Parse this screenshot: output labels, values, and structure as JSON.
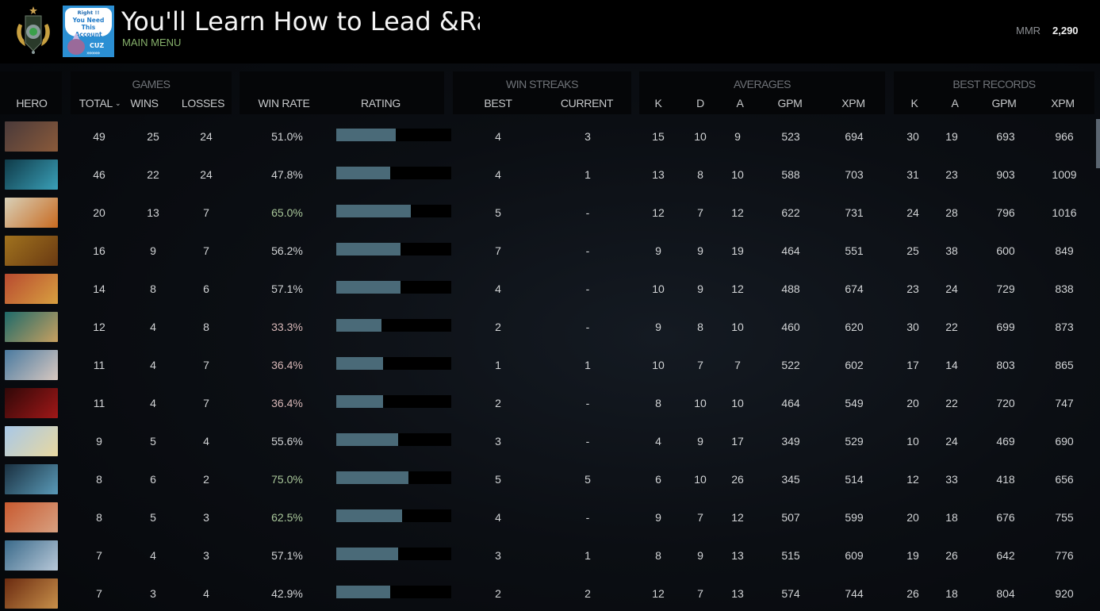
{
  "header": {
    "title": "You'll Learn How to Lead &Ra",
    "subtitle": "MAIN MENU",
    "avatar": {
      "line1": "Right !!",
      "line2": "You Need This",
      "line3": "Account",
      "tag": "CUZ",
      "arrows": "»»»»»"
    },
    "mmr_label": "MMR",
    "mmr_value": "2,290"
  },
  "table": {
    "groups": {
      "games": "GAMES",
      "win_streaks": "WIN STREAKS",
      "averages": "AVERAGES",
      "best_records": "BEST RECORDS"
    },
    "columns": {
      "hero": "HERO",
      "total": "TOTAL",
      "wins": "WINS",
      "losses": "LOSSES",
      "win_rate": "WIN RATE",
      "rating": "RATING",
      "best": "BEST",
      "current": "CURRENT",
      "avg_k": "K",
      "avg_d": "D",
      "avg_a": "A",
      "avg_gpm": "GPM",
      "avg_xpm": "XPM",
      "best_k": "K",
      "best_a": "A",
      "best_gpm": "GPM",
      "best_xpm": "XPM"
    },
    "sort_icon": "chevron-down",
    "win_rate_colors": {
      "high": "#a9c79a",
      "neutral": "#d2d4d6",
      "low": "#d8b8b8"
    },
    "rating_bar_color": "#4a6a78",
    "rows": [
      {
        "hero": "ursa",
        "total": "49",
        "wins": "25",
        "losses": "24",
        "win_rate": "51.0%",
        "rating_pct": 52,
        "streak_best": "4",
        "streak_current": "3",
        "avg_k": "15",
        "avg_d": "10",
        "avg_a": "9",
        "avg_gpm": "523",
        "avg_xpm": "694",
        "best_k": "30",
        "best_a": "19",
        "best_gpm": "693",
        "best_xpm": "966",
        "wr_tone": "neutral"
      },
      {
        "hero": "phantom-assassin",
        "total": "46",
        "wins": "22",
        "losses": "24",
        "win_rate": "47.8%",
        "rating_pct": 47,
        "streak_best": "4",
        "streak_current": "1",
        "avg_k": "13",
        "avg_d": "8",
        "avg_a": "10",
        "avg_gpm": "588",
        "avg_xpm": "703",
        "best_k": "31",
        "best_a": "23",
        "best_gpm": "903",
        "best_xpm": "1009",
        "wr_tone": "neutral"
      },
      {
        "hero": "keeper-of-the-light",
        "total": "20",
        "wins": "13",
        "losses": "7",
        "win_rate": "65.0%",
        "rating_pct": 65,
        "streak_best": "5",
        "streak_current": "-",
        "avg_k": "12",
        "avg_d": "7",
        "avg_a": "12",
        "avg_gpm": "622",
        "avg_xpm": "731",
        "best_k": "24",
        "best_a": "28",
        "best_gpm": "796",
        "best_xpm": "1016",
        "wr_tone": "high"
      },
      {
        "hero": "juggernaut",
        "total": "16",
        "wins": "9",
        "losses": "7",
        "win_rate": "56.2%",
        "rating_pct": 56,
        "streak_best": "7",
        "streak_current": "-",
        "avg_k": "9",
        "avg_d": "9",
        "avg_a": "19",
        "avg_gpm": "464",
        "avg_xpm": "551",
        "best_k": "25",
        "best_a": "38",
        "best_gpm": "600",
        "best_xpm": "849",
        "wr_tone": "neutral"
      },
      {
        "hero": "legion-commander",
        "total": "14",
        "wins": "8",
        "losses": "6",
        "win_rate": "57.1%",
        "rating_pct": 56,
        "streak_best": "4",
        "streak_current": "-",
        "avg_k": "10",
        "avg_d": "9",
        "avg_a": "12",
        "avg_gpm": "488",
        "avg_xpm": "674",
        "best_k": "23",
        "best_a": "24",
        "best_gpm": "729",
        "best_xpm": "838",
        "wr_tone": "neutral"
      },
      {
        "hero": "slark",
        "total": "12",
        "wins": "4",
        "losses": "8",
        "win_rate": "33.3%",
        "rating_pct": 39,
        "streak_best": "2",
        "streak_current": "-",
        "avg_k": "9",
        "avg_d": "8",
        "avg_a": "10",
        "avg_gpm": "460",
        "avg_xpm": "620",
        "best_k": "30",
        "best_a": "22",
        "best_gpm": "699",
        "best_xpm": "873",
        "wr_tone": "low"
      },
      {
        "hero": "sniper",
        "total": "11",
        "wins": "4",
        "losses": "7",
        "win_rate": "36.4%",
        "rating_pct": 41,
        "streak_best": "1",
        "streak_current": "1",
        "avg_k": "10",
        "avg_d": "7",
        "avg_a": "7",
        "avg_gpm": "522",
        "avg_xpm": "602",
        "best_k": "17",
        "best_a": "14",
        "best_gpm": "803",
        "best_xpm": "865",
        "wr_tone": "low"
      },
      {
        "hero": "shadow-fiend",
        "total": "11",
        "wins": "4",
        "losses": "7",
        "win_rate": "36.4%",
        "rating_pct": 41,
        "streak_best": "2",
        "streak_current": "-",
        "avg_k": "8",
        "avg_d": "10",
        "avg_a": "10",
        "avg_gpm": "464",
        "avg_xpm": "549",
        "best_k": "20",
        "best_a": "22",
        "best_gpm": "720",
        "best_xpm": "747",
        "wr_tone": "low"
      },
      {
        "hero": "crystal-maiden",
        "total": "9",
        "wins": "5",
        "losses": "4",
        "win_rate": "55.6%",
        "rating_pct": 54,
        "streak_best": "3",
        "streak_current": "-",
        "avg_k": "4",
        "avg_d": "9",
        "avg_a": "17",
        "avg_gpm": "349",
        "avg_xpm": "529",
        "best_k": "10",
        "best_a": "24",
        "best_gpm": "469",
        "best_xpm": "690",
        "wr_tone": "neutral"
      },
      {
        "hero": "spirit-breaker",
        "total": "8",
        "wins": "6",
        "losses": "2",
        "win_rate": "75.0%",
        "rating_pct": 63,
        "streak_best": "5",
        "streak_current": "5",
        "avg_k": "6",
        "avg_d": "10",
        "avg_a": "26",
        "avg_gpm": "345",
        "avg_xpm": "514",
        "best_k": "12",
        "best_a": "33",
        "best_gpm": "418",
        "best_xpm": "656",
        "wr_tone": "high"
      },
      {
        "hero": "axe",
        "total": "8",
        "wins": "5",
        "losses": "3",
        "win_rate": "62.5%",
        "rating_pct": 57,
        "streak_best": "4",
        "streak_current": "-",
        "avg_k": "9",
        "avg_d": "7",
        "avg_a": "12",
        "avg_gpm": "507",
        "avg_xpm": "599",
        "best_k": "20",
        "best_a": "18",
        "best_gpm": "676",
        "best_xpm": "755",
        "wr_tone": "high"
      },
      {
        "hero": "gyrocopter",
        "total": "7",
        "wins": "4",
        "losses": "3",
        "win_rate": "57.1%",
        "rating_pct": 54,
        "streak_best": "3",
        "streak_current": "1",
        "avg_k": "8",
        "avg_d": "9",
        "avg_a": "13",
        "avg_gpm": "515",
        "avg_xpm": "609",
        "best_k": "19",
        "best_a": "26",
        "best_gpm": "642",
        "best_xpm": "776",
        "wr_tone": "neutral"
      },
      {
        "hero": "bristleback",
        "total": "7",
        "wins": "3",
        "losses": "4",
        "win_rate": "42.9%",
        "rating_pct": 47,
        "streak_best": "2",
        "streak_current": "2",
        "avg_k": "12",
        "avg_d": "7",
        "avg_a": "13",
        "avg_gpm": "574",
        "avg_xpm": "744",
        "best_k": "26",
        "best_a": "18",
        "best_gpm": "804",
        "best_xpm": "920",
        "wr_tone": "neutral"
      }
    ]
  },
  "hero_colors": {
    "ursa": [
      "#4a3a3a",
      "#8a5a3a"
    ],
    "phantom-assassin": [
      "#0f3a48",
      "#3aa0b8"
    ],
    "keeper-of-the-light": [
      "#d8d0b8",
      "#c86a20"
    ],
    "juggernaut": [
      "#a0721e",
      "#6a3a12"
    ],
    "legion-commander": [
      "#b84a30",
      "#d8a040"
    ],
    "slark": [
      "#1e6a6a",
      "#c8a060"
    ],
    "sniper": [
      "#4a7aa0",
      "#d8c8c0"
    ],
    "shadow-fiend": [
      "#300808",
      "#a01818"
    ],
    "crystal-maiden": [
      "#a8c8e8",
      "#e8d8a0"
    ],
    "spirit-breaker": [
      "#1a3040",
      "#5a9ab8"
    ],
    "axe": [
      "#c85a30",
      "#d8a080"
    ],
    "gyrocopter": [
      "#3a6a8a",
      "#b8c8d8"
    ],
    "bristleback": [
      "#6a2a10",
      "#c8904a"
    ]
  }
}
